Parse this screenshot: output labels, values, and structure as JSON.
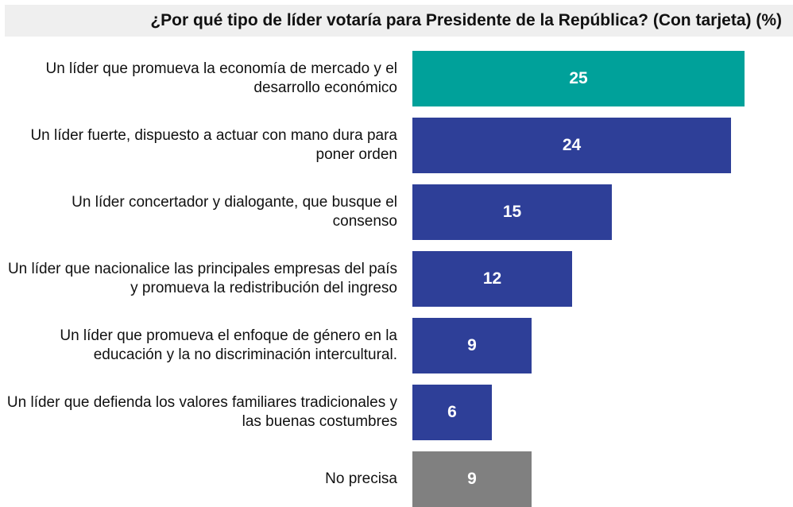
{
  "chart_data": {
    "type": "bar",
    "orientation": "horizontal",
    "title": "¿Por qué tipo de líder votaría para Presidente de la República? (Con tarjeta) (%)",
    "categories": [
      "Un líder que promueva la economía de mercado y el desarrollo económico",
      "Un líder fuerte, dispuesto a actuar con mano dura para poner orden",
      "Un líder concertador y dialogante, que busque el consenso",
      "Un líder que nacionalice las principales empresas del país y promueva la redistribución del ingreso",
      "Un líder que promueva el enfoque de género en la educación y la no discriminación intercultural.",
      "Un líder que defienda los valores familiares tradicionales y las buenas costumbres",
      "No precisa"
    ],
    "values": [
      25,
      24,
      15,
      12,
      9,
      6,
      9
    ],
    "colors": [
      "#00a19a",
      "#2e3f98",
      "#2e3f98",
      "#2e3f98",
      "#2e3f98",
      "#2e3f98",
      "#808080"
    ],
    "xlim": [
      0,
      25
    ],
    "xlabel": "",
    "ylabel": ""
  }
}
